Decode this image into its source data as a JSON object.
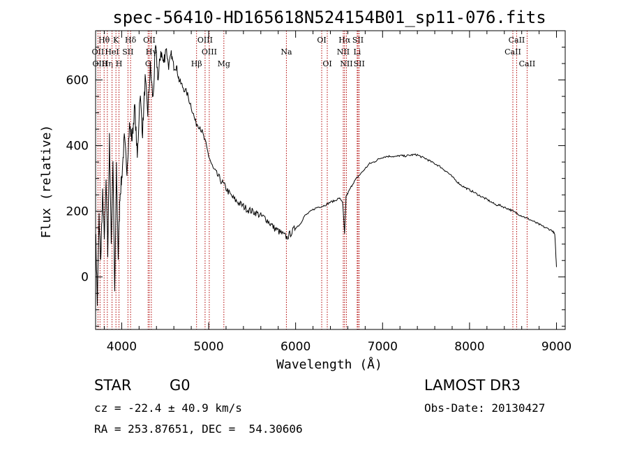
{
  "chart_data": {
    "type": "line",
    "title": "spec-56410-HD165618N524154B01_sp11-076.fits",
    "xlabel": "Wavelength (Å)",
    "ylabel": "Flux (relative)",
    "xlim": [
      3700,
      9100
    ],
    "ylim": [
      -160,
      750
    ],
    "xticks": [
      4000,
      5000,
      6000,
      7000,
      8000,
      9000
    ],
    "yticks": [
      0,
      200,
      400,
      600
    ],
    "xticks_labels": [
      "4000",
      "5000",
      "6000",
      "7000",
      "8000",
      "9000"
    ],
    "yticks_labels": [
      "0",
      "200",
      "400",
      "600"
    ],
    "series": [
      {
        "name": "spectrum",
        "x": [
          3700,
          3720,
          3740,
          3760,
          3780,
          3800,
          3820,
          3840,
          3860,
          3880,
          3900,
          3920,
          3940,
          3960,
          3980,
          4000,
          4030,
          4060,
          4090,
          4120,
          4150,
          4180,
          4210,
          4240,
          4270,
          4300,
          4330,
          4360,
          4390,
          4420,
          4450,
          4480,
          4510,
          4540,
          4570,
          4600,
          4630,
          4660,
          4700,
          4750,
          4800,
          4850,
          4900,
          4950,
          5000,
          5050,
          5100,
          5150,
          5200,
          5250,
          5300,
          5350,
          5400,
          5450,
          5500,
          5550,
          5600,
          5650,
          5700,
          5750,
          5800,
          5850,
          5900,
          5950,
          6000,
          6050,
          6100,
          6150,
          6200,
          6250,
          6300,
          6350,
          6400,
          6450,
          6500,
          6540,
          6563,
          6580,
          6620,
          6660,
          6700,
          6750,
          6800,
          6850,
          6900,
          6950,
          7000,
          7050,
          7100,
          7150,
          7200,
          7250,
          7300,
          7350,
          7400,
          7450,
          7500,
          7550,
          7600,
          7650,
          7700,
          7750,
          7800,
          7850,
          7900,
          7950,
          8000,
          8050,
          8100,
          8150,
          8200,
          8250,
          8300,
          8350,
          8400,
          8450,
          8500,
          8550,
          8600,
          8650,
          8700,
          8750,
          8800,
          8850,
          8900,
          8950,
          8980,
          9000
        ],
        "y": [
          150,
          -80,
          180,
          50,
          250,
          120,
          300,
          80,
          420,
          100,
          360,
          -60,
          330,
          60,
          250,
          300,
          420,
          330,
          460,
          420,
          520,
          360,
          560,
          440,
          600,
          500,
          640,
          540,
          700,
          600,
          690,
          650,
          700,
          640,
          680,
          640,
          640,
          600,
          580,
          560,
          520,
          470,
          460,
          420,
          370,
          330,
          310,
          290,
          270,
          250,
          235,
          225,
          215,
          205,
          200,
          195,
          185,
          180,
          165,
          150,
          140,
          130,
          120,
          135,
          150,
          160,
          185,
          195,
          205,
          212,
          215,
          220,
          228,
          232,
          240,
          230,
          130,
          245,
          265,
          285,
          300,
          315,
          330,
          345,
          350,
          358,
          365,
          367,
          368,
          366,
          370,
          368,
          370,
          372,
          372,
          365,
          360,
          352,
          345,
          338,
          328,
          318,
          305,
          292,
          280,
          272,
          265,
          258,
          250,
          243,
          236,
          228,
          220,
          218,
          212,
          207,
          200,
          193,
          186,
          180,
          174,
          167,
          160,
          153,
          147,
          141,
          130,
          30
        ]
      }
    ],
    "lines": [
      {
        "label": "Hθ",
        "wl": 3798,
        "row": 1
      },
      {
        "label": "OII",
        "wl": 3727,
        "row": 2
      },
      {
        "label": "OIII",
        "wl": 3751,
        "row": 3
      },
      {
        "label": "Hη",
        "wl": 3835,
        "row": 3
      },
      {
        "label": "HeI",
        "wl": 3889,
        "row": 2
      },
      {
        "label": "K",
        "wl": 3934,
        "row": 1
      },
      {
        "label": "H",
        "wl": 3969,
        "row": 3
      },
      {
        "label": "SII",
        "wl": 4072,
        "row": 2
      },
      {
        "label": "Hδ",
        "wl": 4102,
        "row": 1
      },
      {
        "label": "OII",
        "wl": 4318,
        "row": 1
      },
      {
        "label": "Hγ",
        "wl": 4341,
        "row": 2
      },
      {
        "label": "G",
        "wl": 4304,
        "row": 3
      },
      {
        "label": "Hβ",
        "wl": 4861,
        "row": 3
      },
      {
        "label": "OIII",
        "wl": 4959,
        "row": 1
      },
      {
        "label": "OIII",
        "wl": 5007,
        "row": 2
      },
      {
        "label": "Mg",
        "wl": 5175,
        "row": 3
      },
      {
        "label": "Na",
        "wl": 5894,
        "row": 2
      },
      {
        "label": "OI",
        "wl": 6300,
        "row": 1
      },
      {
        "label": "OI",
        "wl": 6364,
        "row": 3
      },
      {
        "label": "Hα",
        "wl": 6563,
        "row": 1
      },
      {
        "label": "NII",
        "wl": 6548,
        "row": 2
      },
      {
        "label": "NII",
        "wl": 6584,
        "row": 3
      },
      {
        "label": "SII",
        "wl": 6717,
        "row": 1
      },
      {
        "label": "Li",
        "wl": 6708,
        "row": 2
      },
      {
        "label": "SII",
        "wl": 6731,
        "row": 3
      },
      {
        "label": "CaII",
        "wl": 8542,
        "row": 1
      },
      {
        "label": "CaII",
        "wl": 8498,
        "row": 2
      },
      {
        "label": "CaII",
        "wl": 8662,
        "row": 3
      }
    ]
  },
  "info": {
    "object_class": "STAR",
    "subclass": "G0",
    "survey": "LAMOST DR3",
    "cz": "cz = -22.4 ± 40.9 km/s",
    "obs_date": "Obs-Date: 20130427",
    "coords": "RA = 253.87651, DEC =  54.30606"
  },
  "colors": {
    "axis": "#000000",
    "spectrum": "#000000",
    "line_marker": "#b00000"
  }
}
